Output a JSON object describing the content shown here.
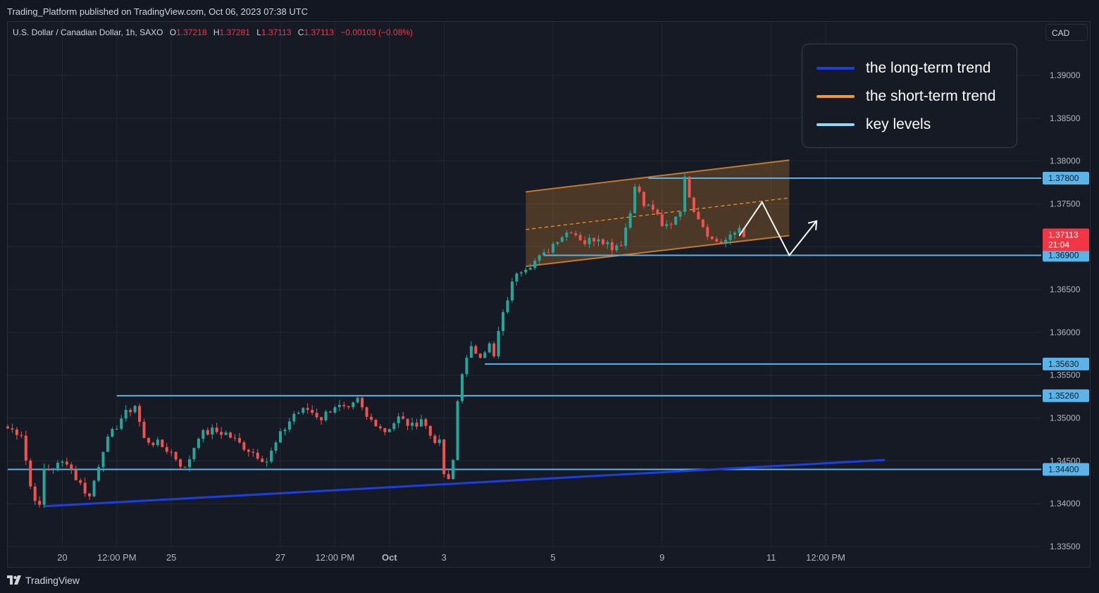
{
  "header": {
    "published": "Trading_Platform published on TradingView.com, Oct 06, 2023 07:38 UTC"
  },
  "symbol": {
    "name": "U.S. Dollar / Canadian Dollar, 1h, SAXO",
    "open_label": "O",
    "open": "1.37218",
    "high_label": "H",
    "high": "1.37281",
    "low_label": "L",
    "low": "1.37113",
    "close_label": "C",
    "close": "1.37113",
    "change": "−0.00103 (−0.08%)"
  },
  "currency": "CAD",
  "legend": {
    "items": [
      {
        "label": "the long-term trend",
        "color": "#1e3fe0"
      },
      {
        "label": "the short-term trend",
        "color": "#f59b23"
      },
      {
        "label": "key levels",
        "color": "#8fd8f7"
      }
    ]
  },
  "footer": {
    "brand": "TradingView"
  },
  "colors": {
    "up": "#26a69a",
    "down": "#ef5350",
    "key_level": "#5ab4e8",
    "channel": "#c27a2c",
    "long_trend": "#1e3fe0",
    "price_tag": "#f23645"
  },
  "chart_data": {
    "type": "candlestick",
    "symbol": "USDCAD",
    "timeframe": "1h",
    "y_ticks": [
      "1.39000",
      "1.38500",
      "1.38000",
      "1.37500",
      "1.37000",
      "1.36500",
      "1.36000",
      "1.35500",
      "1.35000",
      "1.34500",
      "1.34000",
      "1.33500"
    ],
    "ylim": [
      1.335,
      1.3925
    ],
    "x_ticks": [
      {
        "label": "20",
        "t": 12
      },
      {
        "label": "12:00 PM",
        "t": 24
      },
      {
        "label": "25",
        "t": 36
      },
      {
        "label": "27",
        "t": 60
      },
      {
        "label": "12:00 PM",
        "t": 72
      },
      {
        "label": "Oct",
        "t": 84
      },
      {
        "label": "3",
        "t": 96
      },
      {
        "label": "5",
        "t": 120
      },
      {
        "label": "9",
        "t": 144
      },
      {
        "label": "11",
        "t": 168
      },
      {
        "label": "12:00 PM",
        "t": 180
      }
    ],
    "xlim": [
      0,
      197
    ],
    "ohlc_path": [
      [
        0,
        1.3488
      ],
      [
        3,
        1.3482
      ],
      [
        5,
        1.342
      ],
      [
        7,
        1.3395
      ],
      [
        8,
        1.344
      ],
      [
        11,
        1.3445
      ],
      [
        13,
        1.345
      ],
      [
        15,
        1.343
      ],
      [
        18,
        1.3408
      ],
      [
        21,
        1.3465
      ],
      [
        25,
        1.35
      ],
      [
        28,
        1.3515
      ],
      [
        30,
        1.3475
      ],
      [
        33,
        1.347
      ],
      [
        36,
        1.346
      ],
      [
        39,
        1.344
      ],
      [
        42,
        1.348
      ],
      [
        45,
        1.3485
      ],
      [
        48,
        1.3482
      ],
      [
        51,
        1.347
      ],
      [
        54,
        1.346
      ],
      [
        57,
        1.345
      ],
      [
        60,
        1.348
      ],
      [
        63,
        1.3505
      ],
      [
        66,
        1.351
      ],
      [
        69,
        1.35
      ],
      [
        72,
        1.3515
      ],
      [
        75,
        1.3508
      ],
      [
        77,
        1.352
      ],
      [
        79,
        1.35
      ],
      [
        81,
        1.3495
      ],
      [
        83,
        1.3485
      ],
      [
        86,
        1.35
      ],
      [
        89,
        1.349
      ],
      [
        91,
        1.35
      ],
      [
        93,
        1.348
      ],
      [
        95,
        1.347
      ],
      [
        96,
        1.3435
      ],
      [
        97,
        1.3425
      ],
      [
        98,
        1.345
      ],
      [
        99,
        1.352
      ],
      [
        100,
        1.3555
      ],
      [
        102,
        1.358
      ],
      [
        104,
        1.3575
      ],
      [
        106,
        1.3585
      ],
      [
        107,
        1.357
      ],
      [
        108,
        1.36
      ],
      [
        110,
        1.364
      ],
      [
        112,
        1.3672
      ],
      [
        115,
        1.368
      ],
      [
        118,
        1.369
      ],
      [
        121,
        1.371
      ],
      [
        124,
        1.372
      ],
      [
        127,
        1.3705
      ],
      [
        130,
        1.3712
      ],
      [
        133,
        1.37
      ],
      [
        135,
        1.3705
      ],
      [
        137,
        1.374
      ],
      [
        138,
        1.3775
      ],
      [
        140,
        1.3748
      ],
      [
        142,
        1.3745
      ],
      [
        144,
        1.3722
      ],
      [
        146,
        1.3728
      ],
      [
        148,
        1.3745
      ],
      [
        149,
        1.3778
      ],
      [
        151,
        1.3745
      ],
      [
        153,
        1.3725
      ],
      [
        155,
        1.3708
      ],
      [
        157,
        1.3705
      ],
      [
        159,
        1.371
      ],
      [
        161,
        1.37218
      ],
      [
        162,
        1.37113
      ]
    ],
    "last_price": "1.37113",
    "countdown": "21:04",
    "key_levels": [
      {
        "value": 1.378,
        "label": "1.37800",
        "from_t": 141
      },
      {
        "value": 1.369,
        "label": "1.36900",
        "from_t": 118
      },
      {
        "value": 1.3563,
        "label": "1.35630",
        "from_t": 105
      },
      {
        "value": 1.3526,
        "label": "1.35260",
        "from_t": 24
      },
      {
        "value": 1.344,
        "label": "1.34400",
        "from_t": 0
      }
    ],
    "long_term_trend": {
      "from": [
        8,
        1.3397
      ],
      "to": [
        193,
        1.3451
      ]
    },
    "short_term_channel": {
      "upper": {
        "from": [
          114,
          1.3764
        ],
        "to": [
          172,
          1.3801
        ]
      },
      "lower": {
        "from": [
          114,
          1.3677
        ],
        "to": [
          172,
          1.3713
        ]
      },
      "mid": {
        "from": [
          114,
          1.372
        ],
        "to": [
          172,
          1.3757
        ]
      }
    },
    "projection": [
      [
        161,
        1.3713
      ],
      [
        166,
        1.3752
      ],
      [
        172,
        1.369
      ],
      [
        178,
        1.373
      ]
    ]
  }
}
